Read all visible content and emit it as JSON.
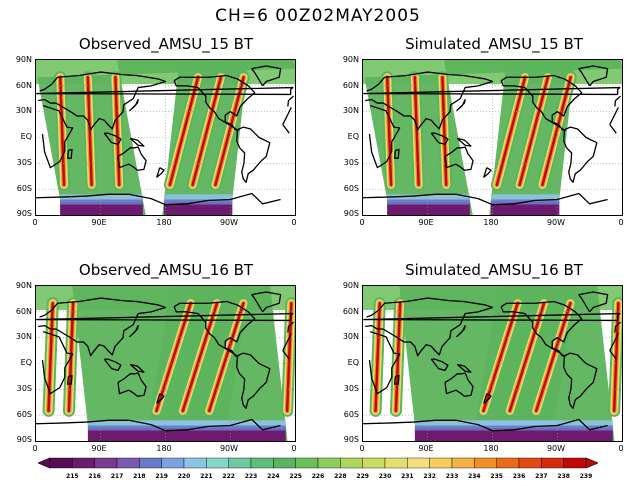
{
  "figure": {
    "title": "CH=6   00Z02MAY2005"
  },
  "panels": [
    {
      "title": "Observed_AMSU_15 BT",
      "satellite": "AMSU_15",
      "type": "Observed"
    },
    {
      "title": "Simulated_AMSU_15 BT",
      "satellite": "AMSU_15",
      "type": "Simulated"
    },
    {
      "title": "Observed_AMSU_16 BT",
      "satellite": "AMSU_16",
      "type": "Observed"
    },
    {
      "title": "Simulated_AMSU_16 BT",
      "satellite": "AMSU_16",
      "type": "Simulated"
    }
  ],
  "axes": {
    "lat_labels": [
      "90N",
      "60N",
      "30N",
      "EQ",
      "30S",
      "60S",
      "90S"
    ],
    "lon_labels": [
      "0",
      "90E",
      "180",
      "90W",
      "0"
    ]
  },
  "colorbar": {
    "labels": [
      "215",
      "216",
      "217",
      "218",
      "219",
      "220",
      "221",
      "222",
      "223",
      "224",
      "225",
      "226",
      "228",
      "229",
      "230",
      "231",
      "232",
      "233",
      "234",
      "235",
      "236",
      "237",
      "238",
      "239"
    ],
    "colors": [
      "#5a0a52",
      "#6e1a6e",
      "#7a3a8e",
      "#7a5ab0",
      "#6c78c8",
      "#7aa2dc",
      "#8cc4e4",
      "#86d6c8",
      "#6ec8a0",
      "#62bc7e",
      "#5cb45c",
      "#6cc05a",
      "#8ecc5c",
      "#aed65e",
      "#ccdc62",
      "#e4e070",
      "#f2e07e",
      "#f6cc5e",
      "#f4b040",
      "#f08e28",
      "#ea6a1a",
      "#e04a12",
      "#d42a0c",
      "#c00808"
    ]
  }
}
